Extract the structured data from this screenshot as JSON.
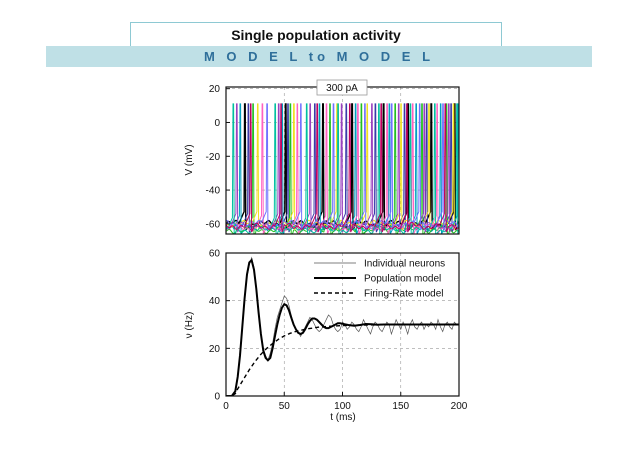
{
  "header": {
    "title": "Single population activity",
    "subtitle": "M O D E L   to   M O D E L"
  },
  "chart_data": [
    {
      "type": "line",
      "name": "voltage-traces",
      "annotation": "300 pA",
      "ylabel": "V (mV)",
      "ylim": [
        -66,
        21
      ],
      "xlim": [
        0,
        200
      ],
      "yticks": [
        20,
        0,
        -20,
        -40,
        -60
      ],
      "grid": true,
      "baseline_mV": -60,
      "spike_peak_mV": 11,
      "trace_colors": [
        "#000000",
        "#3a3aa8",
        "#00a0c0",
        "#20c020",
        "#f0e020",
        "#9a40c0",
        "#ff60c0",
        "#00c0a0",
        "#7070ff",
        "#c00060"
      ],
      "spike_times_ms": [
        [
          16,
          51,
          83,
          108,
          135,
          156,
          176,
          196
        ],
        [
          19,
          53,
          76,
          103,
          128,
          153,
          172,
          193
        ],
        [
          12,
          48,
          80,
          111,
          140,
          163,
          184,
          199
        ],
        [
          23,
          55,
          89,
          116,
          145,
          168,
          189
        ],
        [
          27,
          58,
          95,
          121,
          150,
          174,
          195
        ],
        [
          9,
          45,
          72,
          99,
          125,
          148,
          170,
          191
        ],
        [
          31,
          61,
          86,
          113,
          138,
          160,
          181
        ],
        [
          6,
          42,
          69,
          96,
          131,
          158,
          179,
          198
        ],
        [
          35,
          64,
          92,
          119,
          142,
          166,
          186
        ],
        [
          21,
          47,
          78,
          106,
          133,
          155,
          188
        ]
      ]
    },
    {
      "type": "line",
      "name": "firing-rate",
      "xlabel": "t (ms)",
      "ylabel": "ν (Hz)",
      "xlim": [
        0,
        200
      ],
      "ylim": [
        0,
        60
      ],
      "xticks": [
        0,
        50,
        100,
        150,
        200
      ],
      "yticks": [
        0,
        20,
        40,
        60
      ],
      "grid": true,
      "legend": {
        "placement": "top-right",
        "entries": [
          "Individual neurons",
          "Population model",
          "Firing-Rate model"
        ]
      },
      "series": [
        {
          "name": "Individual neurons",
          "color": "#555555",
          "style": "thin",
          "x": [
            0,
            5,
            8,
            10,
            12,
            14,
            16,
            18,
            20,
            22,
            24,
            26,
            28,
            30,
            32,
            34,
            36,
            38,
            40,
            42,
            44,
            46,
            48,
            50,
            52,
            54,
            56,
            58,
            60,
            62,
            64,
            66,
            68,
            70,
            72,
            74,
            76,
            78,
            80,
            82,
            84,
            86,
            88,
            90,
            92,
            94,
            96,
            98,
            100,
            102,
            104,
            106,
            108,
            110,
            112,
            114,
            116,
            118,
            120,
            122,
            124,
            126,
            128,
            130,
            132,
            134,
            136,
            138,
            140,
            142,
            144,
            146,
            148,
            150,
            152,
            154,
            156,
            158,
            160,
            162,
            164,
            166,
            168,
            170,
            172,
            174,
            176,
            178,
            180,
            182,
            184,
            186,
            188,
            190,
            192,
            194,
            196,
            198,
            200
          ],
          "y": [
            0,
            0,
            2,
            8,
            16,
            28,
            40,
            50,
            55,
            58,
            54,
            46,
            36,
            26,
            20,
            17,
            15,
            18,
            22,
            28,
            33,
            36,
            39,
            42,
            41,
            38,
            34,
            30,
            28,
            27,
            25,
            27,
            29,
            31,
            33,
            32,
            30,
            28,
            27,
            28,
            30,
            32,
            34,
            33,
            30,
            28,
            27,
            28,
            31,
            30,
            28,
            29,
            31,
            30,
            28,
            27,
            29,
            32,
            30,
            28,
            26,
            29,
            31,
            30,
            28,
            27,
            29,
            31,
            30,
            26,
            29,
            32,
            30,
            28,
            31,
            29,
            26,
            30,
            32,
            29,
            28,
            30,
            31,
            28,
            30,
            29,
            31,
            30,
            28,
            32,
            29,
            27,
            30,
            31,
            29,
            28,
            31,
            30,
            30
          ]
        },
        {
          "name": "Population model",
          "color": "#000000",
          "style": "solid",
          "x": [
            0,
            5,
            8,
            10,
            12,
            14,
            16,
            18,
            20,
            22,
            24,
            26,
            28,
            30,
            32,
            34,
            36,
            38,
            40,
            42,
            44,
            46,
            48,
            50,
            52,
            54,
            56,
            58,
            60,
            62,
            64,
            66,
            68,
            70,
            72,
            74,
            76,
            78,
            80,
            82,
            84,
            86,
            88,
            90,
            92,
            94,
            96,
            98,
            100,
            105,
            110,
            115,
            120,
            125,
            130,
            135,
            140,
            150,
            160,
            170,
            180,
            190,
            200
          ],
          "y": [
            0,
            0,
            2,
            8,
            17,
            29,
            41,
            51,
            56,
            57,
            53,
            45,
            35,
            26,
            19,
            16,
            15,
            16,
            20,
            25,
            30,
            34,
            37,
            38.5,
            38,
            36,
            33,
            30,
            28,
            26.5,
            26,
            26.5,
            28,
            30,
            31.5,
            32.5,
            32.5,
            32,
            31,
            30,
            29,
            28.5,
            28.5,
            29,
            29.5,
            30,
            30.5,
            30.5,
            30.3,
            29.8,
            29.5,
            29.8,
            30.2,
            30.1,
            29.9,
            30,
            30,
            30,
            30,
            30,
            30,
            30,
            30
          ]
        },
        {
          "name": "Firing-Rate model",
          "color": "#000000",
          "style": "dashed",
          "x": [
            0,
            5,
            8,
            10,
            15,
            20,
            25,
            30,
            35,
            40,
            45,
            50,
            55,
            60,
            70,
            80,
            90,
            100,
            120,
            140,
            160,
            180,
            200
          ],
          "y": [
            0,
            0,
            1,
            3,
            7,
            11,
            14.5,
            17.5,
            20,
            22,
            23.8,
            25.2,
            26.3,
            27.1,
            28.2,
            28.9,
            29.3,
            29.6,
            29.8,
            29.9,
            30,
            30,
            30
          ]
        }
      ]
    }
  ]
}
